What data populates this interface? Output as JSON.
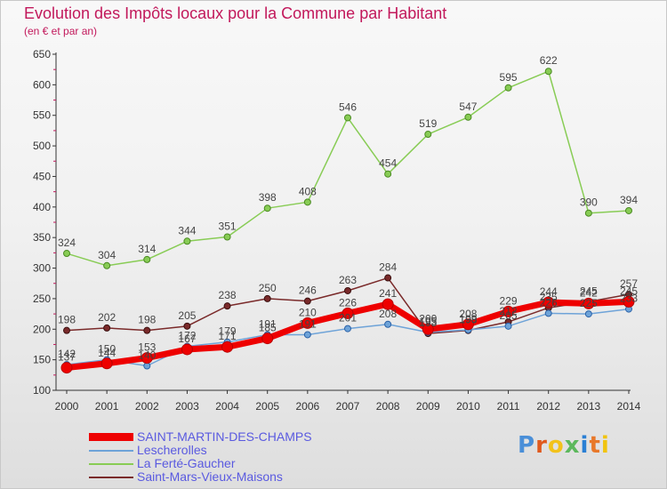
{
  "header": {
    "title": "Evolution des Impôts locaux pour la Commune par Habitant",
    "subtitle": "(en € et par an)"
  },
  "brand": {
    "letters": [
      "P",
      "r",
      "o",
      "x",
      "i",
      "t",
      "i"
    ],
    "colors": [
      "#4a8fd8",
      "#e05a1e",
      "#f2c21b",
      "#5cb85c",
      "#2a7fd4",
      "#e8782a",
      "#f1c40f"
    ]
  },
  "chart_data": {
    "type": "line",
    "title": "Evolution des Impôts locaux pour la Commune par Habitant",
    "subtitle": "(en € et par an)",
    "x": [
      "2000",
      "2001",
      "2002",
      "2003",
      "2004",
      "2005",
      "2006",
      "2007",
      "2008",
      "2009",
      "2010",
      "2011",
      "2012",
      "2013",
      "2014"
    ],
    "ylim": [
      100,
      650
    ],
    "yticks": [
      100,
      150,
      200,
      250,
      300,
      350,
      400,
      450,
      500,
      550,
      600,
      650
    ],
    "grid": false,
    "legend_position": "bottom-left",
    "series": [
      {
        "name": "SAINT-MARTIN-DES-CHAMPS",
        "color": "#ee0000",
        "values": [
          137,
          144,
          153,
          167,
          171,
          185,
          210,
          226,
          241,
          200,
          208,
          229,
          244,
          242,
          245
        ],
        "labels": [
          "137",
          "144",
          "153",
          "167",
          "171",
          "185",
          "210",
          "226",
          "241",
          "200",
          "208",
          "229",
          "244",
          "242",
          "245"
        ]
      },
      {
        "name": "Lescherolles",
        "color": "#6ea3d8",
        "values": [
          142,
          150,
          140,
          172,
          179,
          191,
          191,
          201,
          208,
          195,
          199,
          205,
          226,
          225,
          233
        ],
        "labels": [
          "142",
          "150",
          "140",
          "172",
          "179",
          "191",
          "191",
          "201",
          "208",
          "195",
          "199",
          "205",
          "226",
          "225",
          "233"
        ]
      },
      {
        "name": "La Ferté-Gaucher",
        "color": "#88cc55",
        "values": [
          324,
          304,
          314,
          344,
          351,
          398,
          408,
          546,
          454,
          519,
          547,
          595,
          622,
          390,
          394
        ],
        "labels": [
          "324",
          "304",
          "314",
          "344",
          "351",
          "398",
          "408",
          "546",
          "454",
          "519",
          "547",
          "595",
          "622",
          "390",
          "394"
        ]
      },
      {
        "name": "Saint-Mars-Vieux-Maisons",
        "color": "#7a2a2a",
        "values": [
          198,
          202,
          198,
          205,
          238,
          250,
          246,
          263,
          284,
          193,
          198,
          212,
          235,
          245,
          257
        ],
        "labels": [
          "198",
          "202",
          "198",
          "205",
          "238",
          "250",
          "246",
          "263",
          "284",
          "193",
          "198",
          "212",
          "235",
          "245",
          "257"
        ]
      }
    ]
  }
}
